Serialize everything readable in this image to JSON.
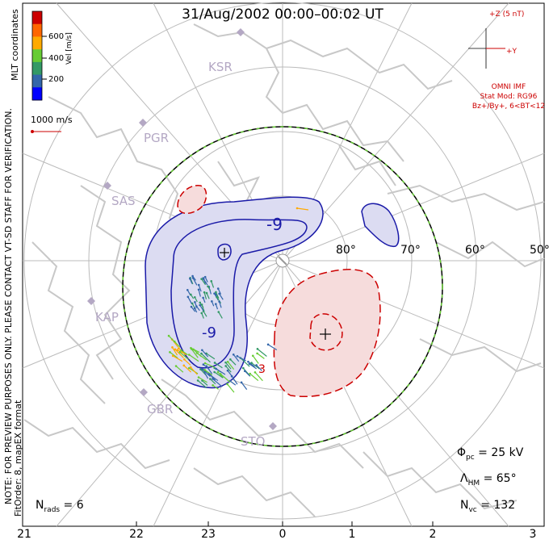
{
  "title": "31/Aug/2002 00:00–00:02 UT",
  "imf": {
    "z_label": "+Z (5 nT)",
    "y_label": "+Y",
    "source": "OMNI IMF",
    "stat_mod": "Stat Mod: RG96",
    "stat_bin": "Bz+/By+, 6<BT<12"
  },
  "colorbar": {
    "title": "Vel [m/s]",
    "ticks": [
      "600",
      "400",
      "200"
    ],
    "colors": [
      "#cc0000",
      "#ff6600",
      "#ffaa00",
      "#66cc33",
      "#339966",
      "#3366aa",
      "#0000ff"
    ]
  },
  "coords_label": "MLT coordinates",
  "reference_vector": "1000 m/s",
  "side_note_line1": "NOTE: FOR PREVIEW PURPOSES ONLY. PLEASE CONTACT VT-SD STAFF FOR VERIFICATION.",
  "side_note_line2": "FitOrder: 8, mapEX format",
  "stations": [
    "KSR",
    "PGR",
    "SAS",
    "KAP",
    "GBR",
    "STO"
  ],
  "latitude_labels": [
    "80°",
    "70°",
    "60°",
    "50°"
  ],
  "contour_labels": [
    "-9",
    "-9",
    "3"
  ],
  "stats": {
    "phi_pc": "Φpc = 25 kV",
    "phi_pc_symbol": "Φ",
    "phi_pc_sub": "pc",
    "phi_pc_value": " = 25 kV",
    "lambda_symbol": "Λ",
    "lambda_sub": "HM",
    "lambda_value": " = 65°",
    "nvc_symbol": "N",
    "nvc_sub": "vc",
    "nvc_value": " = 132",
    "nrads_symbol": "N",
    "nrads_sub": "rads",
    "nrads_value": " = 6"
  },
  "mlt_axis": [
    "21",
    "22",
    "23",
    "0",
    "1",
    "2",
    "3"
  ]
}
